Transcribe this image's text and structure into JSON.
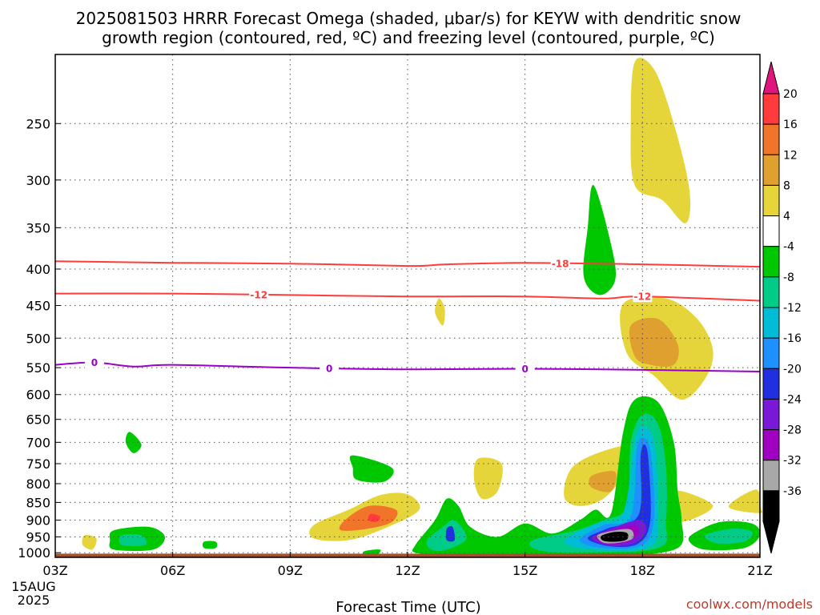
{
  "chart_data": {
    "type": "contour",
    "title_line1": "2025081503 HRRR Forecast Omega (shaded, μbar/s) for KEYW with dendritic snow",
    "title_line2": "growth region (contoured, red, ºC) and freezing level (contoured, purple, ºC)",
    "xlabel": "Forecast Time (UTC)",
    "date_label": [
      "15AUG",
      "2025"
    ],
    "credit": "coolwx.com/models",
    "x_ticks": [
      "03Z",
      "06Z",
      "09Z",
      "12Z",
      "15Z",
      "18Z",
      "21Z"
    ],
    "x_range": [
      3,
      21
    ],
    "y_ticks": [
      250,
      300,
      350,
      400,
      450,
      500,
      550,
      600,
      650,
      700,
      750,
      800,
      850,
      900,
      950,
      1000
    ],
    "y_range": [
      200,
      1015
    ],
    "y_scale": "log-pressure",
    "grid": true,
    "colorbar": {
      "labels": [
        "20",
        "16",
        "12",
        "8",
        "4",
        "-4",
        "-8",
        "-12",
        "-16",
        "-20",
        "-24",
        "-28",
        "-32",
        "-36"
      ],
      "colors": [
        "#ff3b3b",
        "#f0752a",
        "#e0a030",
        "#e6d53a",
        "#ffffff",
        "#00c800",
        "#00cc88",
        "#00bcd4",
        "#1e90ff",
        "#2030e0",
        "#7a18d8",
        "#a000c0",
        "#a8a8a8",
        "#000000"
      ],
      "top_arrow_color": "#e0157e",
      "bottom_arrow_color": "#000000"
    },
    "contour_lines": [
      {
        "label": "-18",
        "color": "#ff3b3b",
        "points": [
          [
            3,
            390
          ],
          [
            6,
            392
          ],
          [
            9,
            393
          ],
          [
            12,
            396
          ],
          [
            13,
            394
          ],
          [
            15,
            392
          ],
          [
            18,
            394
          ],
          [
            21,
            397
          ]
        ],
        "label_x": [
          15.9
        ]
      },
      {
        "label": "-12",
        "color": "#ff3b3b",
        "points": [
          [
            3,
            433
          ],
          [
            6,
            433
          ],
          [
            9,
            435
          ],
          [
            12,
            437
          ],
          [
            15,
            437
          ],
          [
            17,
            440
          ],
          [
            18,
            437
          ],
          [
            21,
            443
          ]
        ],
        "label_x": [
          8.2,
          18.0
        ]
      },
      {
        "label": "0",
        "color": "#9a00c8",
        "points": [
          [
            3,
            545
          ],
          [
            4,
            541
          ],
          [
            5,
            548
          ],
          [
            6,
            545
          ],
          [
            9,
            550
          ],
          [
            12,
            553
          ],
          [
            15,
            552
          ],
          [
            18,
            554
          ],
          [
            21,
            557
          ]
        ],
        "label_x": [
          4.0,
          10.0,
          15.0
        ]
      }
    ],
    "omega_features": [
      {
        "color": "#e6d53a",
        "points": [
          [
            17.8,
            205
          ],
          [
            18.3,
            210
          ],
          [
            18.8,
            250
          ],
          [
            19.2,
            310
          ],
          [
            19.1,
            345
          ],
          [
            18.5,
            320
          ],
          [
            17.8,
            305
          ],
          [
            17.7,
            250
          ]
        ]
      },
      {
        "color": "#e6d53a",
        "points": [
          [
            17.5,
            448
          ],
          [
            18.6,
            440
          ],
          [
            19.4,
            470
          ],
          [
            19.8,
            520
          ],
          [
            19.6,
            570
          ],
          [
            19.0,
            610
          ],
          [
            18.3,
            565
          ],
          [
            17.6,
            525
          ]
        ]
      },
      {
        "color": "#e0a030",
        "points": [
          [
            17.7,
            480
          ],
          [
            18.4,
            470
          ],
          [
            18.9,
            510
          ],
          [
            18.8,
            545
          ],
          [
            18.2,
            545
          ],
          [
            17.8,
            530
          ]
        ]
      },
      {
        "color": "#e6d53a",
        "points": [
          [
            12.8,
            440
          ],
          [
            12.95,
            455
          ],
          [
            12.9,
            480
          ],
          [
            12.7,
            460
          ]
        ]
      },
      {
        "color": "#00c800",
        "points": [
          [
            16.75,
            305
          ],
          [
            17.2,
            370
          ],
          [
            17.3,
            415
          ],
          [
            16.9,
            435
          ],
          [
            16.5,
            410
          ],
          [
            16.6,
            350
          ]
        ]
      },
      {
        "color": "#00c800",
        "points": [
          [
            4.9,
            677
          ],
          [
            5.2,
            705
          ],
          [
            5.0,
            725
          ],
          [
            4.8,
            700
          ]
        ]
      },
      {
        "color": "#00c800",
        "points": [
          [
            10.6,
            730
          ],
          [
            11.6,
            760
          ],
          [
            11.4,
            795
          ],
          [
            10.7,
            790
          ],
          [
            10.6,
            760
          ]
        ]
      },
      {
        "color": "#e6d53a",
        "points": [
          [
            13.8,
            738
          ],
          [
            14.4,
            750
          ],
          [
            14.3,
            820
          ],
          [
            13.9,
            840
          ],
          [
            13.7,
            790
          ]
        ]
      },
      {
        "color": "#e6d53a",
        "points": [
          [
            16.2,
            760
          ],
          [
            17.0,
            720
          ],
          [
            17.8,
            710
          ],
          [
            17.5,
            780
          ],
          [
            17.0,
            840
          ],
          [
            16.4,
            860
          ],
          [
            16.0,
            835
          ]
        ]
      },
      {
        "color": "#e0a030",
        "points": [
          [
            16.7,
            780
          ],
          [
            17.3,
            770
          ],
          [
            17.2,
            820
          ],
          [
            16.7,
            810
          ]
        ]
      },
      {
        "color": "#e6d53a",
        "points": [
          [
            18.9,
            818
          ],
          [
            19.8,
            860
          ],
          [
            19.0,
            905
          ],
          [
            18.8,
            860
          ]
        ]
      },
      {
        "color": "#e6d53a",
        "points": [
          [
            20.2,
            862
          ],
          [
            20.9,
            815
          ],
          [
            21.0,
            860
          ],
          [
            21.0,
            880
          ]
        ]
      },
      {
        "color": "#e6d53a",
        "points": [
          [
            9.6,
            915
          ],
          [
            10.5,
            870
          ],
          [
            11.3,
            830
          ],
          [
            12.0,
            828
          ],
          [
            12.3,
            870
          ],
          [
            11.5,
            920
          ],
          [
            10.5,
            960
          ],
          [
            9.6,
            955
          ]
        ]
      },
      {
        "color": "#f0752a",
        "points": [
          [
            10.4,
            900
          ],
          [
            11.0,
            860
          ],
          [
            11.7,
            870
          ],
          [
            11.6,
            905
          ],
          [
            11.0,
            925
          ],
          [
            10.3,
            930
          ]
        ]
      },
      {
        "color": "#ff3b3b",
        "points": [
          [
            11.05,
            882
          ],
          [
            11.3,
            890
          ],
          [
            11.2,
            905
          ],
          [
            11.0,
            900
          ]
        ]
      },
      {
        "color": "#00c800",
        "points": [
          [
            4.5,
            930
          ],
          [
            5.4,
            920
          ],
          [
            5.8,
            950
          ],
          [
            5.5,
            990
          ],
          [
            4.5,
            990
          ],
          [
            4.4,
            960
          ]
        ]
      },
      {
        "color": "#00cc88",
        "points": [
          [
            4.7,
            945
          ],
          [
            5.2,
            945
          ],
          [
            5.3,
            975
          ],
          [
            4.7,
            975
          ]
        ]
      },
      {
        "color": "#e6d53a",
        "points": [
          [
            3.75,
            945
          ],
          [
            4.05,
            955
          ],
          [
            3.95,
            990
          ],
          [
            3.7,
            975
          ]
        ]
      },
      {
        "color": "#00c800",
        "points": [
          [
            6.8,
            965
          ],
          [
            7.1,
            965
          ],
          [
            7.1,
            985
          ],
          [
            6.8,
            985
          ]
        ]
      },
      {
        "color": "#00c800",
        "points": [
          [
            12.2,
            975
          ],
          [
            12.7,
            900
          ],
          [
            13.0,
            840
          ],
          [
            13.3,
            860
          ],
          [
            13.6,
            920
          ],
          [
            14.3,
            950
          ],
          [
            15.0,
            910
          ],
          [
            15.7,
            940
          ],
          [
            16.4,
            900
          ],
          [
            16.8,
            870
          ],
          [
            17.2,
            880
          ],
          [
            17.5,
            680
          ],
          [
            17.8,
            610
          ],
          [
            18.4,
            615
          ],
          [
            18.8,
            700
          ],
          [
            18.9,
            820
          ],
          [
            19.0,
            900
          ],
          [
            18.9,
            985
          ],
          [
            17.5,
            1010
          ],
          [
            16.0,
            1010
          ],
          [
            14.0,
            1005
          ],
          [
            13.0,
            1005
          ],
          [
            12.2,
            1000
          ]
        ]
      },
      {
        "color": "#00cc88",
        "points": [
          [
            12.5,
            960
          ],
          [
            12.9,
            920
          ],
          [
            13.2,
            900
          ],
          [
            13.5,
            955
          ],
          [
            13.0,
            990
          ],
          [
            12.6,
            990
          ]
        ]
      },
      {
        "color": "#00cc88",
        "points": [
          [
            15.2,
            960
          ],
          [
            16.3,
            930
          ],
          [
            17.0,
            900
          ],
          [
            17.6,
            860
          ],
          [
            17.7,
            700
          ],
          [
            18.0,
            640
          ],
          [
            18.4,
            660
          ],
          [
            18.6,
            760
          ],
          [
            18.6,
            900
          ],
          [
            18.4,
            985
          ],
          [
            16.3,
            1000
          ],
          [
            15.3,
            990
          ]
        ]
      },
      {
        "color": "#00bcd4",
        "points": [
          [
            16.0,
            965
          ],
          [
            16.8,
            910
          ],
          [
            17.5,
            880
          ],
          [
            17.8,
            700
          ],
          [
            18.0,
            665
          ],
          [
            18.3,
            700
          ],
          [
            18.4,
            880
          ],
          [
            18.2,
            980
          ],
          [
            16.8,
            990
          ]
        ]
      },
      {
        "color": "#1e90ff",
        "points": [
          [
            16.4,
            960
          ],
          [
            17.0,
            915
          ],
          [
            17.7,
            890
          ],
          [
            17.85,
            720
          ],
          [
            18.0,
            690
          ],
          [
            18.2,
            720
          ],
          [
            18.3,
            890
          ],
          [
            18.0,
            975
          ],
          [
            17.0,
            985
          ]
        ]
      },
      {
        "color": "#2030e0",
        "points": [
          [
            16.6,
            955
          ],
          [
            17.1,
            925
          ],
          [
            17.9,
            885
          ],
          [
            17.95,
            735
          ],
          [
            18.05,
            705
          ],
          [
            18.15,
            740
          ],
          [
            18.2,
            900
          ],
          [
            17.9,
            970
          ],
          [
            17.2,
            980
          ]
        ]
      },
      {
        "color": "#7a18d8",
        "points": [
          [
            16.7,
            955
          ],
          [
            17.2,
            925
          ],
          [
            17.9,
            900
          ],
          [
            18.1,
            930
          ],
          [
            17.8,
            970
          ],
          [
            17.2,
            978
          ]
        ]
      },
      {
        "color": "#a000c0",
        "points": [
          [
            16.8,
            950
          ],
          [
            17.3,
            928
          ],
          [
            17.8,
            915
          ],
          [
            17.9,
            940
          ],
          [
            17.6,
            965
          ],
          [
            17.1,
            972
          ]
        ]
      },
      {
        "color": "#a8a8a8",
        "points": [
          [
            16.85,
            945
          ],
          [
            17.3,
            930
          ],
          [
            17.7,
            928
          ],
          [
            17.75,
            955
          ],
          [
            17.4,
            968
          ],
          [
            17.0,
            968
          ]
        ]
      },
      {
        "color": "#000000",
        "points": [
          [
            16.95,
            947
          ],
          [
            17.3,
            935
          ],
          [
            17.6,
            938
          ],
          [
            17.6,
            958
          ],
          [
            17.3,
            965
          ],
          [
            17.0,
            962
          ]
        ]
      },
      {
        "color": "#2030e0",
        "points": [
          [
            13.0,
            925
          ],
          [
            13.15,
            920
          ],
          [
            13.2,
            960
          ],
          [
            13.0,
            960
          ]
        ]
      },
      {
        "color": "#00c800",
        "points": [
          [
            19.3,
            940
          ],
          [
            20.0,
            905
          ],
          [
            20.8,
            910
          ],
          [
            21.0,
            945
          ],
          [
            20.6,
            985
          ],
          [
            19.6,
            990
          ],
          [
            19.2,
            965
          ]
        ]
      },
      {
        "color": "#00cc88",
        "points": [
          [
            19.6,
            945
          ],
          [
            20.3,
            925
          ],
          [
            20.8,
            935
          ],
          [
            20.6,
            965
          ],
          [
            19.9,
            970
          ]
        ]
      },
      {
        "color": "#00c800",
        "points": [
          [
            10.9,
            995
          ],
          [
            11.3,
            990
          ],
          [
            11.2,
            1008
          ],
          [
            10.9,
            1008
          ]
        ]
      }
    ],
    "ground": {
      "color": "#a0522d",
      "top_pressure": 1003
    }
  }
}
